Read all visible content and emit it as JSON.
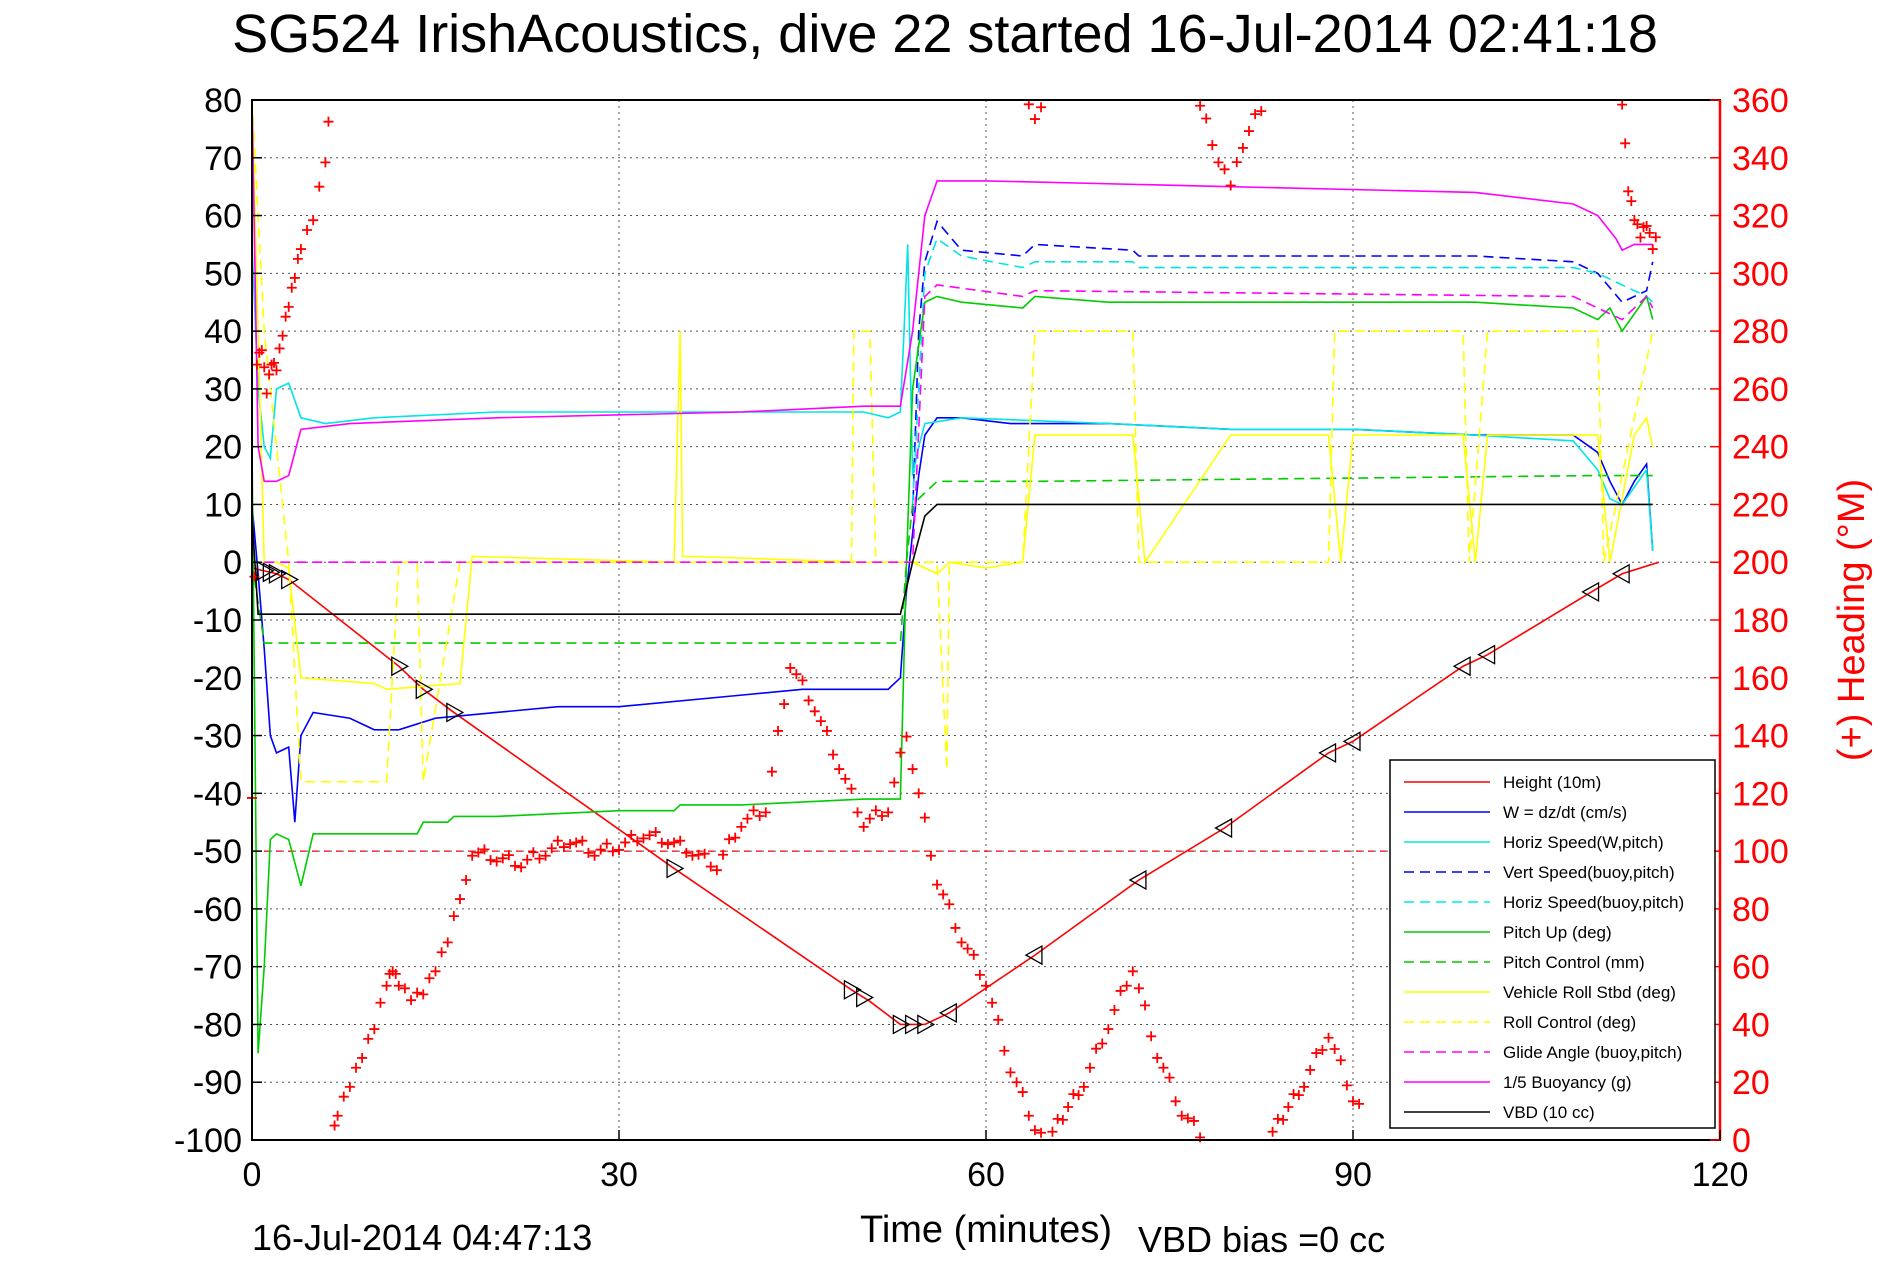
{
  "chart_data": {
    "type": "line",
    "title": "SG524 IrishAcoustics, dive 22 started 16-Jul-2014 02:41:18",
    "xlabel": "Time (minutes)",
    "ylabel_right": "(+) Heading (°M)",
    "footer_left": "16-Jul-2014 04:47:13",
    "footer_right": "VBD bias =0 cc",
    "xlim": [
      0,
      120
    ],
    "ylim": [
      -100,
      80
    ],
    "ylim_right": [
      0,
      360
    ],
    "xticks": [
      "0",
      "30",
      "60",
      "90",
      "120"
    ],
    "yticks": [
      "80",
      "70",
      "60",
      "50",
      "40",
      "30",
      "20",
      "10",
      "0",
      "-10",
      "-20",
      "-30",
      "-40",
      "-50",
      "-60",
      "-70",
      "-80",
      "-90",
      "-100"
    ],
    "yticks_right": [
      "360",
      "340",
      "320",
      "300",
      "280",
      "260",
      "240",
      "220",
      "200",
      "180",
      "160",
      "140",
      "120",
      "100",
      "80",
      "60",
      "40",
      "20",
      "0"
    ],
    "grid": true,
    "legend_position": "lower-right",
    "series": [
      {
        "name": "Height (10m)",
        "color": "#ff0000",
        "dash": "solid",
        "x": [
          0,
          1,
          2,
          3,
          12,
          14,
          16.5,
          34.5,
          49,
          50.5,
          53,
          55,
          57,
          64,
          72.5,
          79.5,
          88,
          90,
          99,
          101,
          110,
          112,
          115
        ],
        "y": [
          -1,
          -1.5,
          -2,
          -3,
          -18,
          -22,
          -26,
          -53,
          -74,
          -76,
          -80,
          -80,
          -78,
          -68,
          -55,
          -46,
          -33,
          -31,
          -18,
          -16,
          -4.5,
          -2,
          0
        ]
      },
      {
        "name": "W = dz/dt (cm/s)",
        "color": "#0000ff",
        "dash": "solid",
        "x": [
          0,
          0.5,
          1,
          1.5,
          2,
          3,
          3.5,
          4,
          5,
          8,
          10,
          12,
          15,
          20,
          25,
          30,
          40,
          45,
          50,
          52,
          53,
          53.5,
          54,
          54.5,
          55,
          56,
          58,
          62,
          70,
          80,
          90,
          100,
          108,
          110,
          111,
          112,
          113,
          114,
          114.5
        ],
        "y": [
          10,
          -2,
          -15,
          -30,
          -33,
          -32,
          -45,
          -30,
          -26,
          -27,
          -29,
          -29,
          -27,
          -26,
          -25,
          -25,
          -23,
          -22,
          -22,
          -22,
          -20,
          -5,
          5,
          15,
          22,
          25,
          25,
          24,
          24,
          23,
          23,
          22,
          22,
          19,
          14,
          10,
          14,
          17,
          2
        ]
      },
      {
        "name": "Horiz Speed(W,pitch)",
        "color": "#00e5e5",
        "dash": "solid",
        "x": [
          0,
          0.5,
          1,
          1.5,
          2,
          3,
          4,
          6,
          10,
          20,
          30,
          40,
          50,
          52,
          53,
          53.3,
          53.6,
          54,
          54.5,
          55,
          58,
          70,
          80,
          90,
          100,
          108,
          110,
          111,
          112,
          113,
          114,
          114.5
        ],
        "y": [
          55,
          30,
          20,
          18,
          30,
          31,
          25,
          24,
          25,
          26,
          26,
          26,
          26,
          25,
          26,
          40,
          55,
          15,
          20,
          24,
          25,
          24,
          23,
          23,
          22,
          21,
          16,
          11,
          10,
          13,
          16,
          2
        ]
      },
      {
        "name": "Vert Speed(buoy,pitch)",
        "color": "#0000ff",
        "dash": "dashed",
        "x": [
          54,
          54.5,
          55,
          56,
          58,
          63,
          64,
          72,
          72.5,
          80,
          90,
          100,
          108,
          110,
          112,
          114,
          114.5
        ],
        "y": [
          8,
          40,
          52,
          59,
          54,
          53,
          55,
          54,
          53,
          53,
          53,
          53,
          52,
          50,
          45,
          47,
          52
        ]
      },
      {
        "name": "Horiz Speed(buoy,pitch)",
        "color": "#00e5e5",
        "dash": "dashed",
        "x": [
          54,
          55,
          56,
          58,
          63,
          64,
          72,
          72.5,
          80,
          90,
          100,
          108,
          110,
          112,
          114,
          114.5
        ],
        "y": [
          10,
          50,
          56,
          53,
          51,
          52,
          52,
          51,
          51,
          51,
          51,
          51,
          50,
          48,
          46,
          45
        ]
      },
      {
        "name": "Pitch Up (deg)",
        "color": "#00cc00",
        "dash": "solid",
        "x": [
          0,
          0.5,
          1,
          1.5,
          2,
          3,
          4,
          5,
          10,
          13.5,
          14,
          16,
          16.5,
          20,
          30,
          34.5,
          35,
          40,
          50,
          53,
          53.5,
          54,
          55,
          56,
          58,
          63,
          64,
          70,
          80,
          90,
          100,
          108,
          110,
          111,
          112,
          114,
          114.5
        ],
        "y": [
          20,
          -85,
          -70,
          -48,
          -47,
          -48,
          -56,
          -47,
          -47,
          -47,
          -45,
          -45,
          -44,
          -44,
          -43,
          -43,
          -42,
          -42,
          -41,
          -41,
          0,
          30,
          45,
          46,
          45,
          44,
          46,
          45,
          45,
          45,
          45,
          44,
          42,
          44,
          40,
          46,
          42
        ]
      },
      {
        "name": "Pitch Control (mm)",
        "color": "#00cc00",
        "dash": "dashed",
        "x": [
          0,
          1,
          2,
          3,
          53,
          53.5,
          54,
          56,
          64,
          110,
          114.5
        ],
        "y": [
          0,
          -14,
          -14,
          -14,
          -14,
          0,
          10,
          14,
          14,
          15,
          15
        ]
      },
      {
        "name": "Vehicle Roll Stbd (deg)",
        "color": "#ffff00",
        "dash": "solid",
        "x": [
          0,
          1,
          2,
          3,
          4,
          10,
          11,
          17,
          18,
          34.5,
          35,
          35.2,
          36,
          50,
          53,
          54,
          56,
          57,
          60,
          63,
          64,
          72,
          73,
          80,
          88,
          89,
          90,
          99,
          100,
          101,
          110,
          111,
          113,
          114,
          114.5
        ],
        "y": [
          80,
          0,
          0,
          -1,
          -20,
          -21,
          -22,
          -21,
          1,
          0,
          40,
          1,
          1,
          0,
          0,
          0,
          -2,
          0,
          -1,
          0,
          22,
          22,
          0,
          22,
          22,
          0,
          22,
          22,
          0,
          22,
          22,
          0,
          22,
          25,
          20
        ]
      },
      {
        "name": "Roll Control (deg)",
        "color": "#ffff00",
        "dash": "dashed",
        "x": [
          0,
          1,
          3,
          4,
          11,
          12,
          13.5,
          14,
          17,
          35,
          49,
          49.2,
          50.5,
          51,
          53.5,
          54,
          56,
          56.8,
          57,
          63,
          64,
          72,
          72.5,
          88,
          88.5,
          90,
          99,
          99.5,
          101,
          110,
          110.5,
          114.5
        ],
        "y": [
          80,
          40,
          0,
          -38,
          -38,
          0,
          0,
          -38,
          0,
          0,
          0,
          40,
          40,
          0,
          0,
          0,
          0,
          -36,
          0,
          0,
          40,
          40,
          0,
          0,
          40,
          40,
          40,
          0,
          40,
          40,
          0,
          40
        ]
      },
      {
        "name": "Glide Angle (buoy,pitch)",
        "color": "#ff00ff",
        "dash": "dashed",
        "x": [
          1,
          54,
          55,
          56,
          63,
          64,
          108,
          110,
          112,
          114,
          114.5
        ],
        "y": [
          0,
          0,
          46,
          48,
          46,
          47,
          46,
          44,
          42,
          46,
          44
        ]
      },
      {
        "name": "1/5 Buoyancy (g)",
        "color": "#ff00ff",
        "dash": "solid",
        "x": [
          0,
          0.5,
          1,
          1.5,
          2,
          3,
          4,
          8,
          20,
          40,
          50,
          53,
          54,
          55,
          56,
          60,
          80,
          100,
          108,
          110,
          111.5,
          112,
          113,
          114.5
        ],
        "y": [
          80,
          20,
          14,
          14,
          14,
          15,
          23,
          24,
          25,
          26,
          27,
          27,
          40,
          60,
          66,
          66,
          65,
          64,
          62,
          60,
          56,
          54,
          55,
          55
        ]
      },
      {
        "name": "VBD (10 cc)",
        "color": "#000000",
        "dash": "solid",
        "x": [
          0,
          0.5,
          1,
          2,
          53,
          54,
          55,
          56,
          57,
          60,
          114.5
        ],
        "y": [
          8,
          -9,
          -9,
          -9,
          -9,
          0,
          8,
          10,
          10,
          10,
          10
        ]
      }
    ],
    "heading_series": {
      "name": "(+) Heading (°M)",
      "color": "#ff0000",
      "marker": "+",
      "segments": [
        {
          "x": [
            0,
            0.4,
            0.8,
            1.2,
            1.6,
            2,
            2.5,
            3,
            3.5,
            4,
            5,
            6,
            6.5
          ],
          "y": [
            120,
            270,
            275,
            260,
            270,
            268,
            280,
            290,
            300,
            310,
            320,
            340,
            365
          ]
        },
        {
          "x": [
            6.5,
            7,
            8,
            9,
            10,
            11,
            11.5,
            12,
            13,
            14,
            15,
            16,
            17,
            18
          ],
          "y": [
            0,
            10,
            20,
            30,
            40,
            55,
            60,
            55,
            50,
            52,
            60,
            70,
            85,
            95
          ]
        },
        {
          "x": [
            18,
            20,
            22,
            24,
            26,
            28,
            30,
            32,
            34,
            36,
            38,
            40,
            42,
            44,
            46,
            48,
            50,
            52,
            54
          ],
          "y": [
            100,
            98,
            96,
            100,
            104,
            100,
            102,
            106,
            104,
            100,
            95,
            110,
            115,
            165,
            150,
            130,
            110,
            115,
            150
          ]
        },
        {
          "x": [
            54,
            56,
            58,
            60,
            62,
            64,
            65
          ],
          "y": [
            130,
            90,
            70,
            55,
            25,
            5,
            0
          ]
        },
        {
          "x": [
            63,
            64,
            65
          ],
          "y": [
            362,
            355,
            360
          ]
        },
        {
          "x": [
            65,
            68,
            70,
            72,
            74,
            76,
            78
          ],
          "y": [
            0,
            20,
            40,
            60,
            30,
            10,
            0
          ]
        },
        {
          "x": [
            77,
            79,
            80,
            81,
            83
          ],
          "y": [
            364,
            340,
            332,
            345,
            362
          ]
        },
        {
          "x": [
            83,
            86,
            88,
            90,
            91
          ],
          "y": [
            0,
            20,
            37,
            15,
            10
          ]
        },
        {
          "x": [
            112,
            112.5,
            113,
            113.5,
            114,
            114.5,
            115
          ],
          "y": [
            360,
            330,
            320,
            314,
            318,
            310,
            315
          ]
        }
      ]
    },
    "depth_markers_x": [
      1,
      1.5,
      2,
      3,
      12,
      14,
      16.5,
      34.5,
      49,
      50,
      53,
      54,
      55,
      57,
      64,
      72.5,
      79.5,
      88,
      90,
      99,
      101,
      109.5,
      112
    ],
    "reference_line": {
      "y_right": 100,
      "color": "#ff0000",
      "dash": "dashed"
    }
  }
}
